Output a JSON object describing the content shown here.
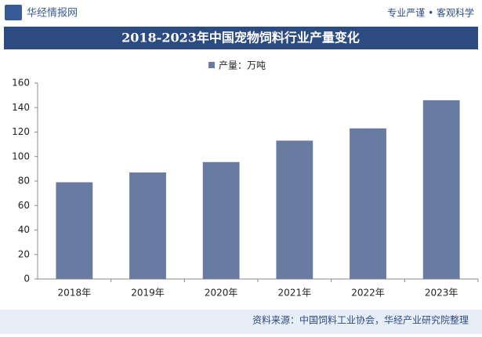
{
  "header": {
    "logo": "华经情报网",
    "slogan": "专业严谨 • 客观科学"
  },
  "chart_data": {
    "type": "bar",
    "title": "2018-2023年中国宠物饲料行业产量变化",
    "categories": [
      "2018年",
      "2019年",
      "2020年",
      "2021年",
      "2022年",
      "2023年"
    ],
    "series": [
      {
        "name": "产量：万吨",
        "color": "#6a7ba2",
        "values": [
          79,
          87,
          95.5,
          113,
          123,
          146
        ]
      }
    ],
    "ylim": [
      0,
      160
    ],
    "yticks": [
      0,
      20,
      40,
      60,
      80,
      100,
      120,
      140,
      160
    ],
    "grid": false
  },
  "footer": {
    "source": "资料来源：中国饲料工业协会，华经产业研究院整理"
  }
}
